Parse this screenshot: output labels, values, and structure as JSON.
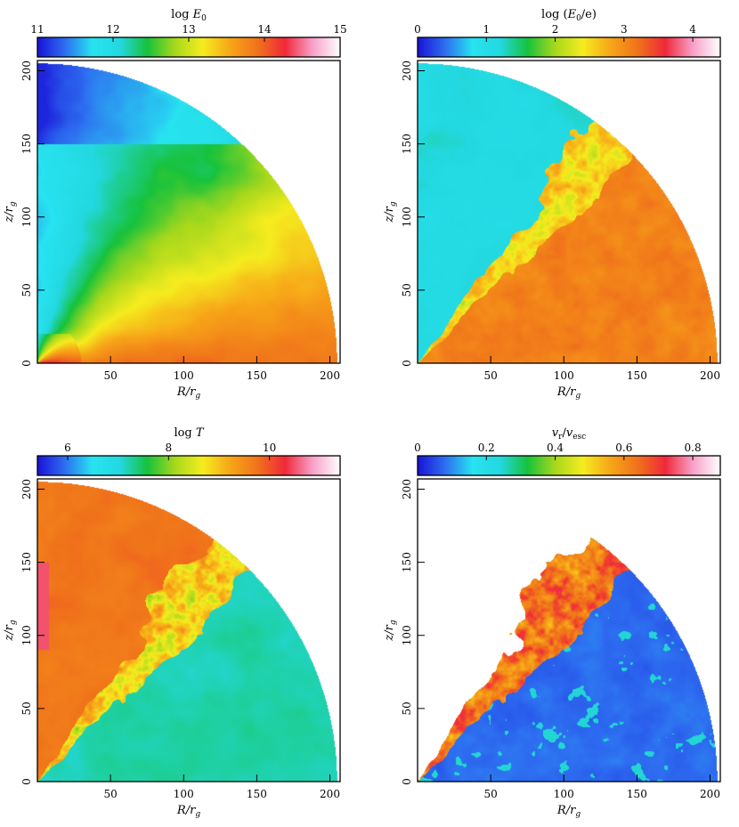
{
  "chart_data": [
    {
      "type": "heatmap",
      "title": "log E_0",
      "title_main": "log ",
      "title_var": "E",
      "title_sub": "0",
      "colorbar": {
        "range": [
          11,
          15
        ],
        "ticks": [
          11,
          12,
          13,
          14,
          15
        ]
      },
      "xlabel": "R/r_g",
      "ylabel": "z/r_g",
      "xlim": [
        0,
        207
      ],
      "ylim": [
        0,
        207
      ],
      "xticks": [
        50,
        100,
        150,
        200
      ],
      "yticks": [
        0,
        50,
        100,
        150,
        200
      ],
      "grid": false,
      "field": "energy",
      "description": "quarter-disk wedge; low values (blue) near pole, rising to yellow/orange near equator, red/pink hot spot near origin"
    },
    {
      "type": "heatmap",
      "title": "log (E_0/e)",
      "title_main": "log (",
      "title_var": "E",
      "title_sub": "0",
      "title_tail": "/e)",
      "colorbar": {
        "range": [
          0,
          4.4
        ],
        "ticks": [
          0,
          1,
          2,
          3,
          4
        ]
      },
      "xlabel": "R/r_g",
      "ylabel": "z/r_g",
      "xlim": [
        0,
        207
      ],
      "ylim": [
        0,
        207
      ],
      "xticks": [
        50,
        100,
        150,
        200
      ],
      "yticks": [
        0,
        50,
        100,
        150,
        200
      ],
      "grid": false,
      "field": "ratio"
    },
    {
      "type": "heatmap",
      "title": "log T",
      "title_main": "log ",
      "title_var": "T",
      "colorbar": {
        "range": [
          5.4,
          11.4
        ],
        "ticks": [
          6,
          8,
          10
        ]
      },
      "xlabel": "R/r_g",
      "ylabel": "z/r_g",
      "xlim": [
        0,
        207
      ],
      "ylim": [
        0,
        207
      ],
      "xticks": [
        50,
        100,
        150,
        200
      ],
      "yticks": [
        0,
        50,
        100,
        150,
        200
      ],
      "grid": false,
      "field": "temperature"
    },
    {
      "type": "heatmap",
      "title": "v_r/v_esc",
      "title_var": "v",
      "title_sub": "r",
      "title_sep": "/",
      "title_var2": "v",
      "title_sub2": "esc",
      "colorbar": {
        "range": [
          0,
          0.88
        ],
        "ticks": [
          0,
          0.2,
          0.4,
          0.6,
          0.8
        ]
      },
      "xlabel": "R/r_g",
      "ylabel": "z/r_g",
      "xlim": [
        0,
        207
      ],
      "ylim": [
        0,
        207
      ],
      "xticks": [
        50,
        100,
        150,
        200
      ],
      "yticks": [
        0,
        50,
        100,
        150,
        200
      ],
      "grid": false,
      "field": "velocity"
    }
  ],
  "colormap": [
    "#1a12d8",
    "#2d6ef0",
    "#27e3f0",
    "#23d8e0",
    "#17c23c",
    "#a7d81c",
    "#f5ec1e",
    "#f7a618",
    "#f0731a",
    "#f0283a",
    "#f7a0c8",
    "#ffffff"
  ],
  "axis": {
    "x_letter": "R",
    "y_letter": "z",
    "over": "/",
    "r_letter": "r",
    "r_sub": "g"
  }
}
